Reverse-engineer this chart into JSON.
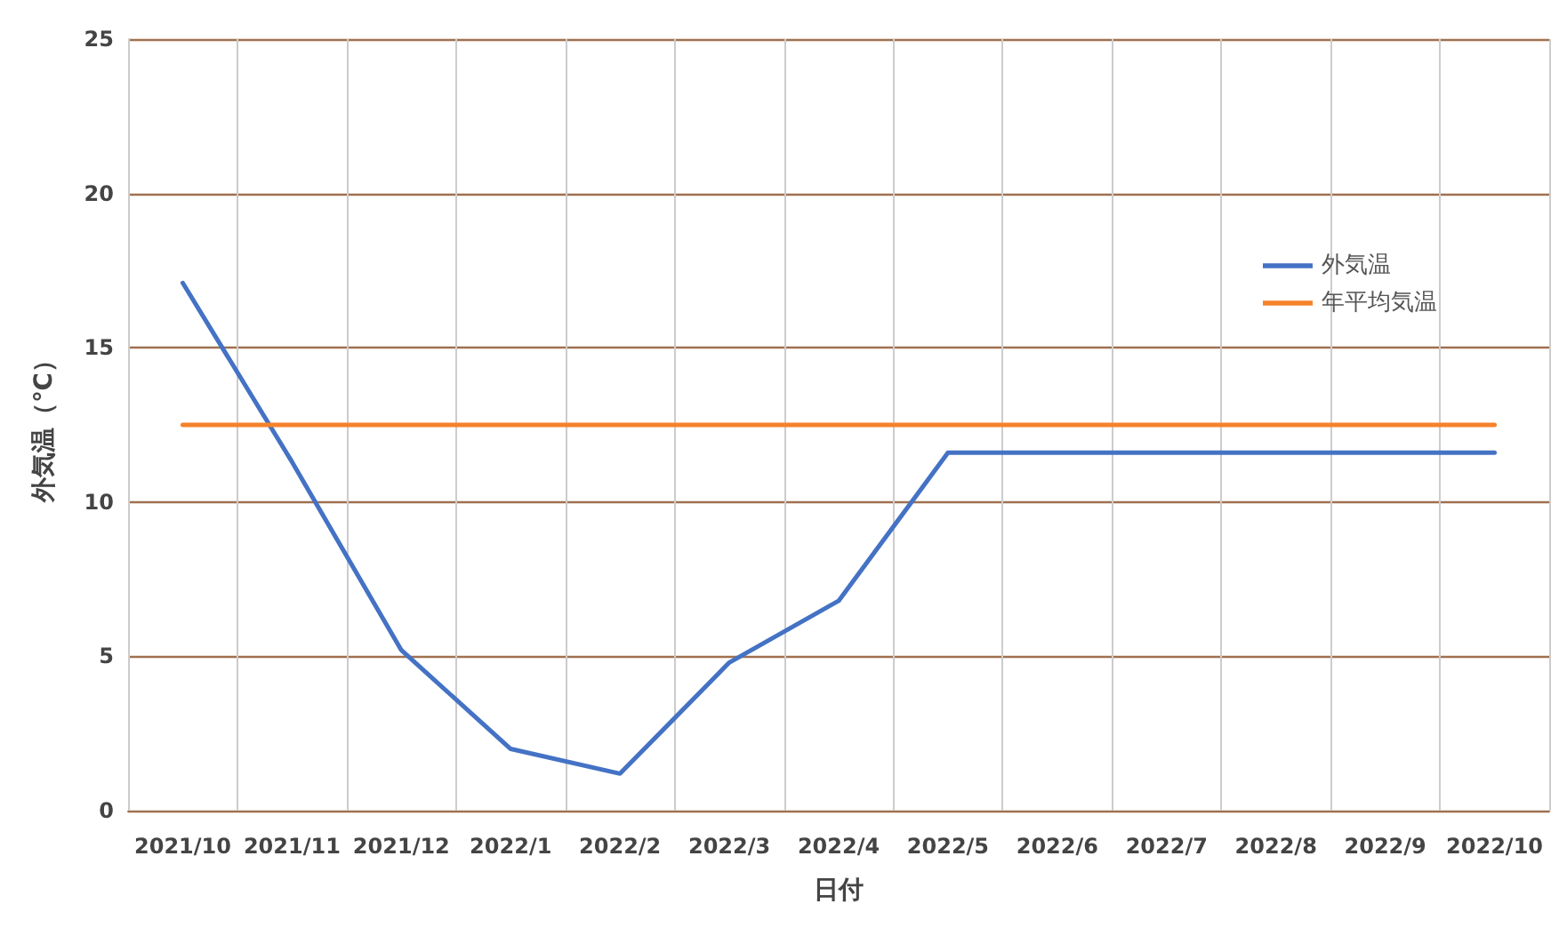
{
  "chart_data": {
    "type": "line",
    "xlabel": "日付",
    "ylabel": "外気温（℃）",
    "categories": [
      "2021/10",
      "2021/11",
      "2021/12",
      "2022/1",
      "2022/2",
      "2022/3",
      "2022/4",
      "2022/5",
      "2022/6",
      "2022/7",
      "2022/8",
      "2022/9",
      "2022/10"
    ],
    "series": [
      {
        "name": "外気温",
        "color": "#4472c4",
        "values": [
          17.1,
          11.3,
          5.2,
          2.0,
          1.2,
          4.8,
          6.8,
          11.6,
          11.6,
          11.6,
          11.6,
          11.6,
          11.6
        ]
      },
      {
        "name": "年平均気温",
        "color": "#f5822a",
        "values": [
          12.5,
          12.5,
          12.5,
          12.5,
          12.5,
          12.5,
          12.5,
          12.5,
          12.5,
          12.5,
          12.5,
          12.5,
          12.5
        ]
      }
    ],
    "ylim": [
      0,
      25
    ],
    "yticks": [
      0,
      5,
      10,
      15,
      20,
      25
    ],
    "grid": true,
    "legend": "right",
    "marker": "none",
    "line_style": "solid"
  }
}
